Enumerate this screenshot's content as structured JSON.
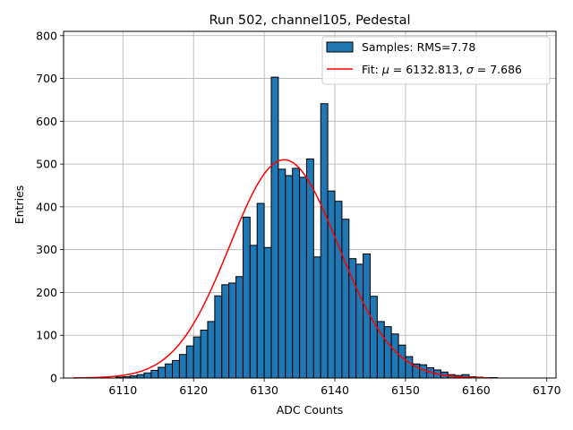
{
  "chart_data": {
    "type": "bar",
    "title": "Run 502, channel105, Pedestal",
    "xlabel": "ADC Counts",
    "ylabel": "Entries",
    "xlim": [
      6101.6,
      6171.3
    ],
    "ylim": [
      0,
      810
    ],
    "xticks": [
      6110,
      6120,
      6130,
      6140,
      6150,
      6160,
      6170
    ],
    "yticks": [
      0,
      100,
      200,
      300,
      400,
      500,
      600,
      700,
      800
    ],
    "grid": true,
    "legend_position": "top-right",
    "bin_start": 6104,
    "bin_width": 1,
    "histogram": {
      "name": "Samples: RMS=7.78",
      "color": "#1f77b4",
      "values": [
        0,
        1,
        0,
        1,
        0,
        2,
        3,
        5,
        8,
        12,
        18,
        25,
        33,
        41,
        55,
        75,
        96,
        112,
        132,
        192,
        218,
        222,
        237,
        376,
        310,
        408,
        305,
        703,
        488,
        473,
        490,
        469,
        512,
        283,
        641,
        437,
        413,
        371,
        279,
        266,
        290,
        191,
        132,
        120,
        103,
        77,
        50,
        33,
        31,
        24,
        19,
        14,
        8,
        6,
        8,
        3,
        2,
        1,
        1
      ]
    },
    "fit": {
      "name_prefix": "Fit: ",
      "mu_symbol": "μ",
      "sigma_symbol": "σ",
      "mu": "6132.813",
      "sigma": "7.686",
      "mu_value": 6132.813,
      "sigma_value": 7.686,
      "amplitude": 510,
      "x_range": [
        6103,
        6162
      ],
      "color": "#ff0000"
    }
  }
}
